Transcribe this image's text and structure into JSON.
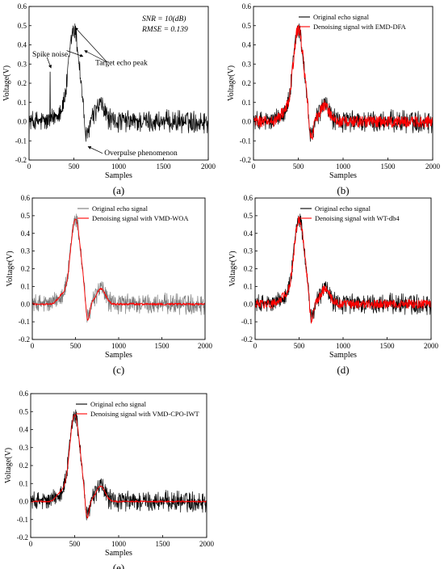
{
  "chart_data": [
    {
      "type": "line",
      "panel_label": "(a)",
      "xlabel": "Samples",
      "ylabel": "Voltage(V)",
      "xlim": [
        0,
        2000
      ],
      "ylim": [
        -0.2,
        0.6
      ],
      "xticks": [
        "0",
        "500",
        "1000",
        "1500",
        "2000"
      ],
      "yticks": [
        "-0.2",
        "-0.1",
        "0.0",
        "0.1",
        "0.2",
        "0.3",
        "0.4",
        "0.5",
        "0.6"
      ],
      "series": [
        {
          "color": "#000000",
          "noise_amplitude": 0.05
        }
      ],
      "annotations": {
        "snr": "SNR = 10(dB)",
        "rmse": "RMSE = 0.139",
        "spike": "Spike noise",
        "peak": "Target echo peak",
        "overpulse": "Overpulse phenomenon"
      }
    },
    {
      "type": "line",
      "panel_label": "(b)",
      "xlabel": "Samples",
      "ylabel": "Voltage(V)",
      "xlim": [
        0,
        2000
      ],
      "ylim": [
        -0.2,
        0.6
      ],
      "xticks": [
        "0",
        "500",
        "1000",
        "1500",
        "2000"
      ],
      "yticks": [
        "-0.2",
        "-0.1",
        "0.0",
        "0.1",
        "0.2",
        "0.3",
        "0.4",
        "0.5",
        "0.6"
      ],
      "series": [
        {
          "name": "Original echo signal",
          "color": "#000000",
          "noise_amplitude": 0.05
        },
        {
          "name": "Denoising signal with EMD-DFA",
          "color": "#ff0000",
          "noise_amplitude": 0.03
        }
      ]
    },
    {
      "type": "line",
      "panel_label": "(c)",
      "xlabel": "Samples",
      "ylabel": "Voltage(V)",
      "xlim": [
        0,
        2000
      ],
      "ylim": [
        -0.2,
        0.6
      ],
      "xticks": [
        "0",
        "500",
        "1000",
        "1500",
        "2000"
      ],
      "yticks": [
        "-0.2",
        "-0.1",
        "0.0",
        "0.1",
        "0.2",
        "0.3",
        "0.4",
        "0.5",
        "0.6"
      ],
      "series": [
        {
          "name": "Original echo signal",
          "color": "#7a7a7a",
          "noise_amplitude": 0.05
        },
        {
          "name": "Denoising signal with VMD-WOA",
          "color": "#ff0000",
          "noise_amplitude": 0.006
        }
      ]
    },
    {
      "type": "line",
      "panel_label": "(d)",
      "xlabel": "Samples",
      "ylabel": "Voltage(V)",
      "xlim": [
        0,
        2000
      ],
      "ylim": [
        -0.2,
        0.6
      ],
      "xticks": [
        "0",
        "500",
        "1000",
        "1500",
        "2000"
      ],
      "yticks": [
        "-0.2",
        "-0.1",
        "0.0",
        "0.1",
        "0.2",
        "0.3",
        "0.4",
        "0.5",
        "0.6"
      ],
      "series": [
        {
          "name": "Original echo signal",
          "color": "#000000",
          "noise_amplitude": 0.05
        },
        {
          "name": "Denoising signal with WT-db4",
          "color": "#ff0000",
          "noise_amplitude": 0.025
        }
      ]
    },
    {
      "type": "line",
      "panel_label": "(e)",
      "xlabel": "Samples",
      "ylabel": "Voltage(V)",
      "xlim": [
        0,
        2000
      ],
      "ylim": [
        -0.2,
        0.6
      ],
      "xticks": [
        "0",
        "500",
        "1000",
        "1500",
        "2000"
      ],
      "yticks": [
        "-0.2",
        "-0.1",
        "0.0",
        "0.1",
        "0.2",
        "0.3",
        "0.4",
        "0.5",
        "0.6"
      ],
      "series": [
        {
          "name": "Original echo signal",
          "color": "#000000",
          "noise_amplitude": 0.05
        },
        {
          "name": "Denoising signal with VMD-CPO-IWT",
          "color": "#ff0000",
          "noise_amplitude": 0.004
        }
      ]
    }
  ]
}
